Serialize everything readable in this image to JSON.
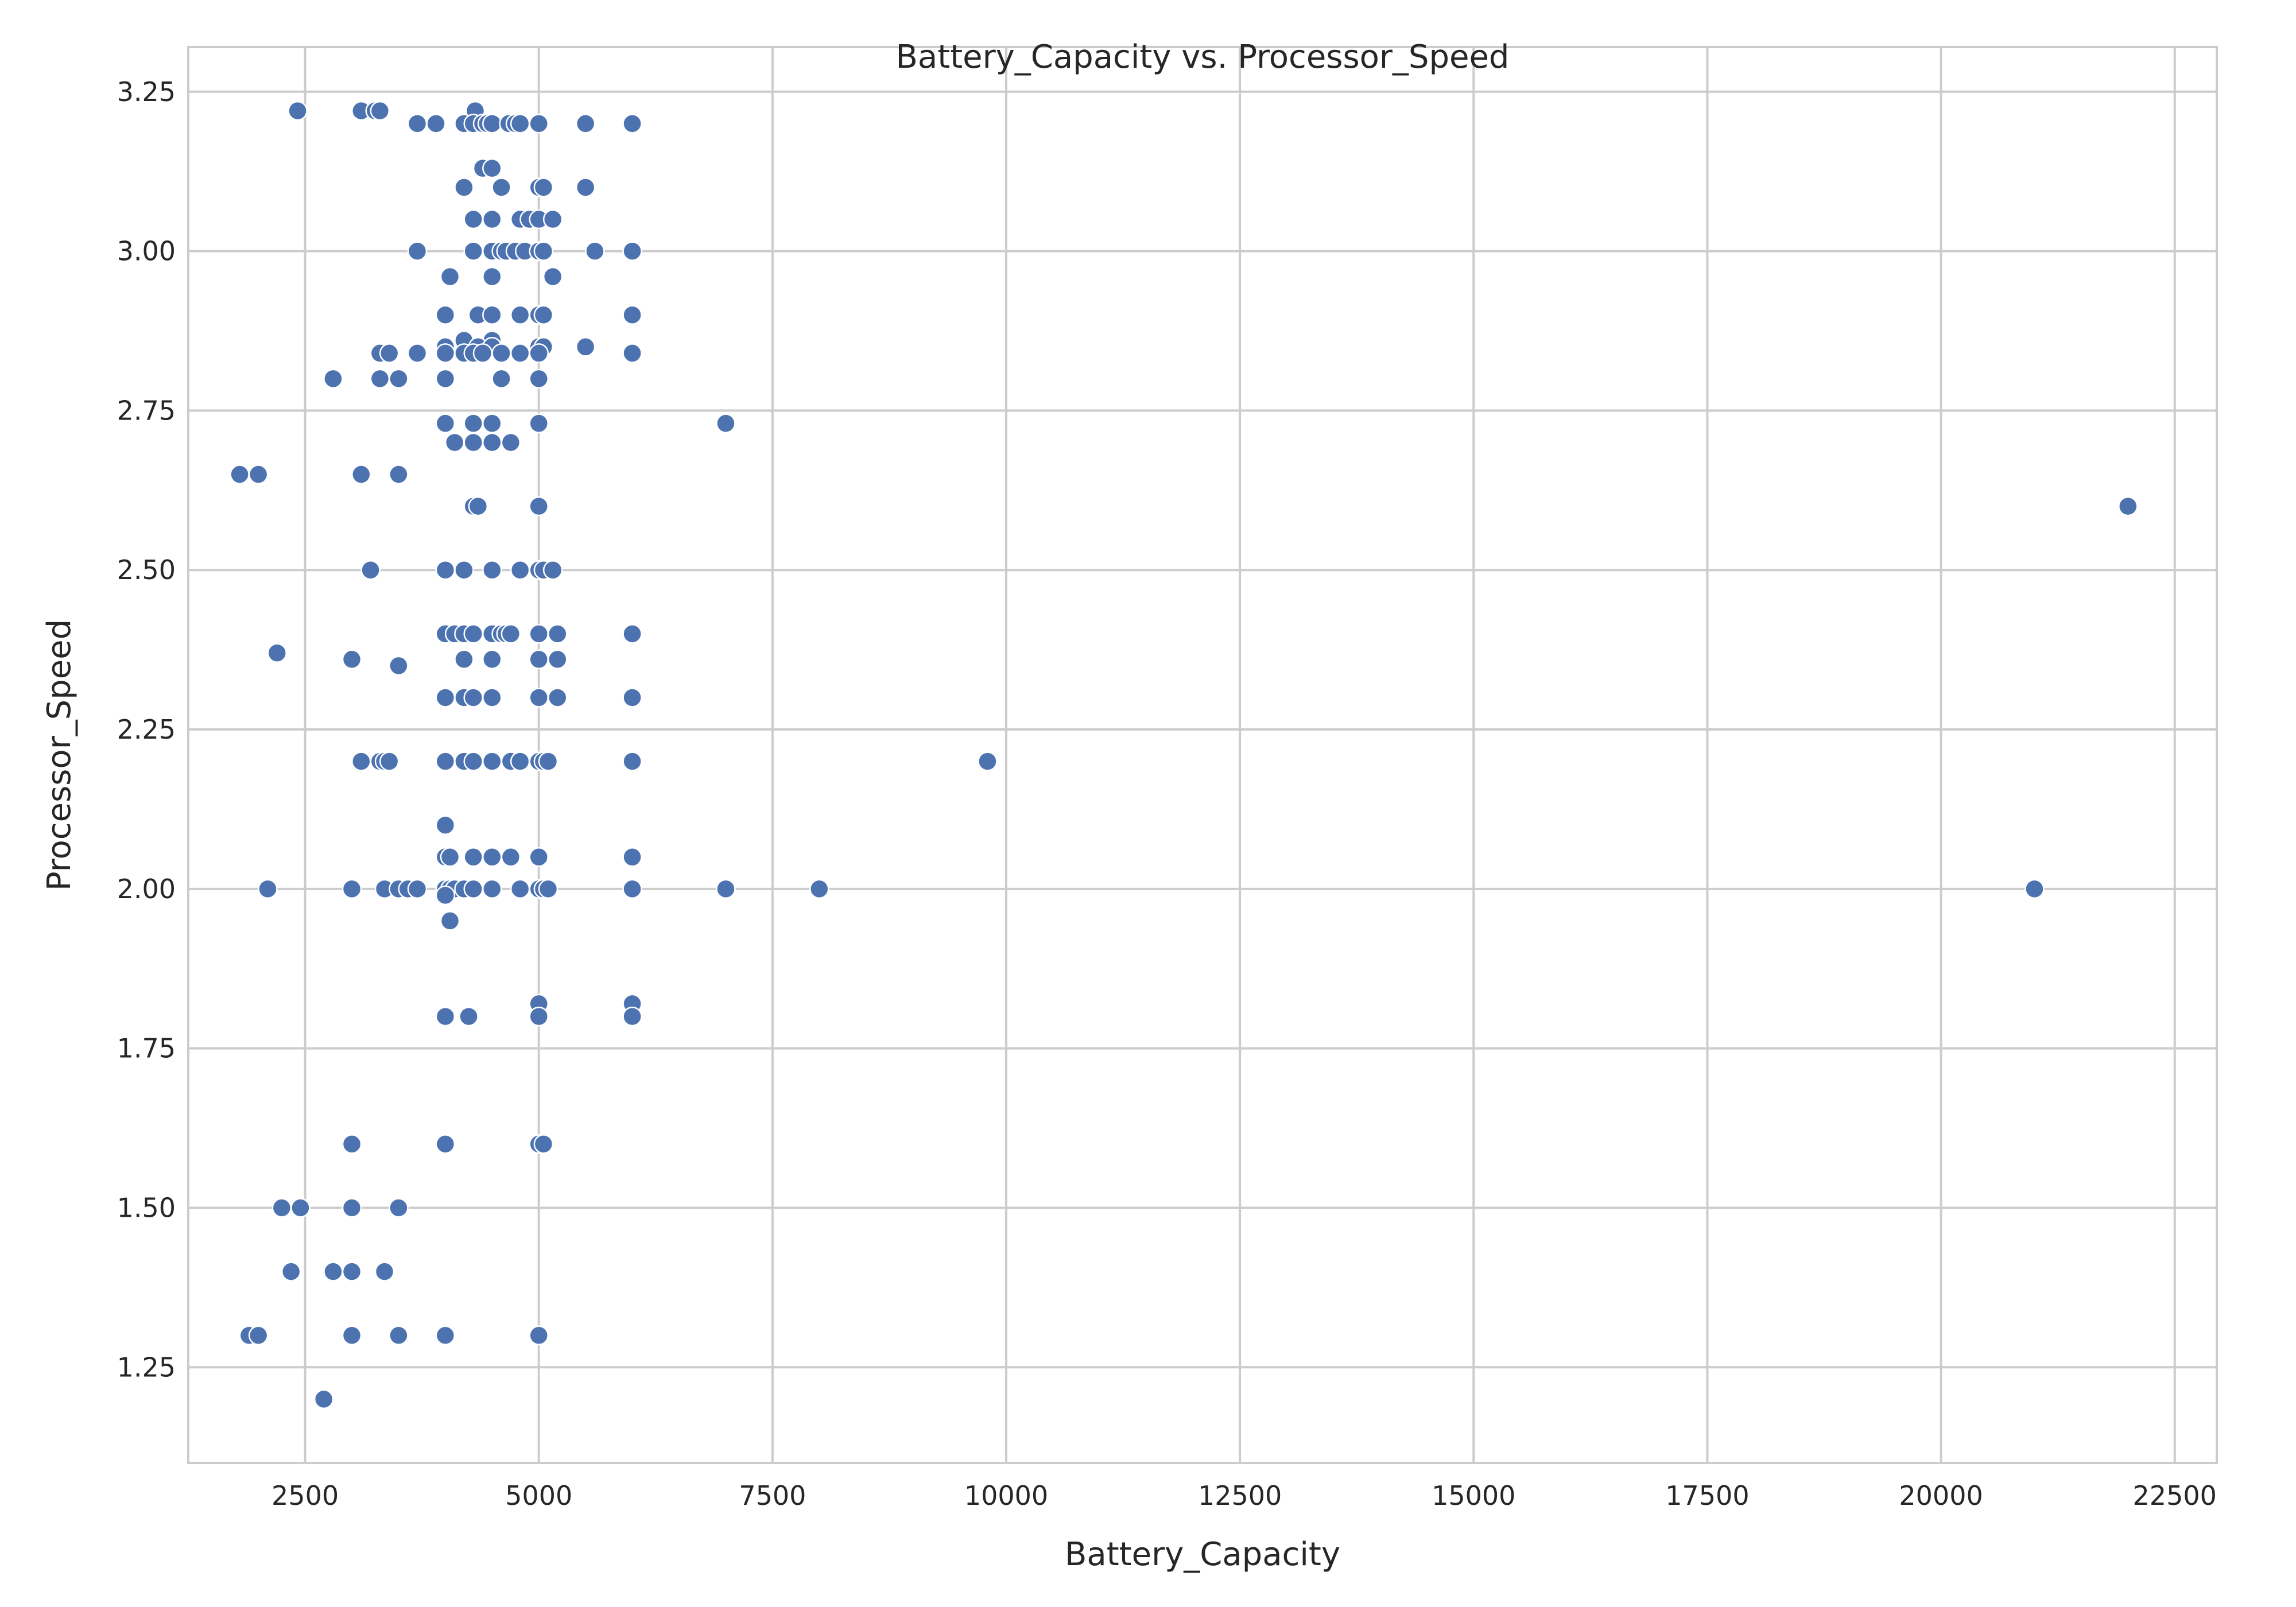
{
  "chart_data": {
    "type": "scatter",
    "title": "Battery_Capacity vs. Processor_Speed",
    "xlabel": "Battery_Capacity",
    "ylabel": "Processor_Speed",
    "xlim": [
      1250,
      22950
    ],
    "ylim": [
      1.1,
      3.32
    ],
    "xticks": [
      2500,
      5000,
      7500,
      10000,
      12500,
      15000,
      17500,
      20000,
      22500
    ],
    "xtick_labels": [
      "2500",
      "5000",
      "7500",
      "10000",
      "12500",
      "15000",
      "17500",
      "20000",
      "22500"
    ],
    "yticks": [
      1.25,
      1.5,
      1.75,
      2.0,
      2.25,
      2.5,
      2.75,
      3.0,
      3.25
    ],
    "ytick_labels": [
      "1.25",
      "1.50",
      "1.75",
      "2.00",
      "2.25",
      "2.50",
      "2.75",
      "3.00",
      "3.25"
    ],
    "grid": true,
    "marker_color": "#4c72b0",
    "points": [
      [
        2420,
        3.22
      ],
      [
        3100,
        3.22
      ],
      [
        3250,
        3.22
      ],
      [
        3300,
        3.22
      ],
      [
        4320,
        3.22
      ],
      [
        3700,
        3.2
      ],
      [
        3900,
        3.2
      ],
      [
        4200,
        3.2
      ],
      [
        4300,
        3.2
      ],
      [
        4400,
        3.2
      ],
      [
        4450,
        3.2
      ],
      [
        4500,
        3.2
      ],
      [
        4680,
        3.2
      ],
      [
        4750,
        3.2
      ],
      [
        4800,
        3.2
      ],
      [
        5000,
        3.2
      ],
      [
        5500,
        3.2
      ],
      [
        6000,
        3.2
      ],
      [
        4400,
        3.13
      ],
      [
        4500,
        3.13
      ],
      [
        4200,
        3.1
      ],
      [
        4600,
        3.1
      ],
      [
        5000,
        3.1
      ],
      [
        5050,
        3.1
      ],
      [
        5500,
        3.1
      ],
      [
        4300,
        3.05
      ],
      [
        4500,
        3.05
      ],
      [
        4800,
        3.05
      ],
      [
        4900,
        3.05
      ],
      [
        5000,
        3.05
      ],
      [
        5150,
        3.05
      ],
      [
        3700,
        3.0
      ],
      [
        4300,
        3.0
      ],
      [
        4500,
        3.0
      ],
      [
        4600,
        3.0
      ],
      [
        4650,
        3.0
      ],
      [
        4750,
        3.0
      ],
      [
        4850,
        3.0
      ],
      [
        5000,
        3.0
      ],
      [
        5050,
        3.0
      ],
      [
        5600,
        3.0
      ],
      [
        6000,
        3.0
      ],
      [
        4050,
        2.96
      ],
      [
        4500,
        2.96
      ],
      [
        5150,
        2.96
      ],
      [
        4000,
        2.9
      ],
      [
        4350,
        2.9
      ],
      [
        4500,
        2.9
      ],
      [
        4800,
        2.9
      ],
      [
        5000,
        2.9
      ],
      [
        5050,
        2.9
      ],
      [
        6000,
        2.9
      ],
      [
        4200,
        2.86
      ],
      [
        4500,
        2.86
      ],
      [
        4000,
        2.85
      ],
      [
        4350,
        2.85
      ],
      [
        4500,
        2.85
      ],
      [
        5000,
        2.85
      ],
      [
        5050,
        2.85
      ],
      [
        5500,
        2.85
      ],
      [
        3300,
        2.84
      ],
      [
        3400,
        2.84
      ],
      [
        3700,
        2.84
      ],
      [
        4000,
        2.84
      ],
      [
        4200,
        2.84
      ],
      [
        4300,
        2.84
      ],
      [
        4400,
        2.84
      ],
      [
        4600,
        2.84
      ],
      [
        4800,
        2.84
      ],
      [
        5000,
        2.84
      ],
      [
        6000,
        2.84
      ],
      [
        2800,
        2.8
      ],
      [
        3300,
        2.8
      ],
      [
        3500,
        2.8
      ],
      [
        4000,
        2.8
      ],
      [
        4600,
        2.8
      ],
      [
        5000,
        2.8
      ],
      [
        4000,
        2.73
      ],
      [
        4300,
        2.73
      ],
      [
        4500,
        2.73
      ],
      [
        5000,
        2.73
      ],
      [
        7000,
        2.73
      ],
      [
        4100,
        2.7
      ],
      [
        4300,
        2.7
      ],
      [
        4500,
        2.7
      ],
      [
        4700,
        2.7
      ],
      [
        1800,
        2.65
      ],
      [
        2000,
        2.65
      ],
      [
        3100,
        2.65
      ],
      [
        3500,
        2.65
      ],
      [
        4300,
        2.6
      ],
      [
        4350,
        2.6
      ],
      [
        5000,
        2.6
      ],
      [
        22000,
        2.6
      ],
      [
        3200,
        2.5
      ],
      [
        4000,
        2.5
      ],
      [
        4200,
        2.5
      ],
      [
        4500,
        2.5
      ],
      [
        4800,
        2.5
      ],
      [
        5000,
        2.5
      ],
      [
        5050,
        2.5
      ],
      [
        5150,
        2.5
      ],
      [
        4000,
        2.4
      ],
      [
        4100,
        2.4
      ],
      [
        4200,
        2.4
      ],
      [
        4300,
        2.4
      ],
      [
        4500,
        2.4
      ],
      [
        4600,
        2.4
      ],
      [
        4650,
        2.4
      ],
      [
        4700,
        2.4
      ],
      [
        5000,
        2.4
      ],
      [
        5200,
        2.4
      ],
      [
        6000,
        2.4
      ],
      [
        2200,
        2.37
      ],
      [
        3000,
        2.36
      ],
      [
        4200,
        2.36
      ],
      [
        4500,
        2.36
      ],
      [
        5000,
        2.36
      ],
      [
        5200,
        2.36
      ],
      [
        3500,
        2.35
      ],
      [
        4000,
        2.3
      ],
      [
        4200,
        2.3
      ],
      [
        4300,
        2.3
      ],
      [
        4500,
        2.3
      ],
      [
        5000,
        2.3
      ],
      [
        5200,
        2.3
      ],
      [
        6000,
        2.3
      ],
      [
        3100,
        2.2
      ],
      [
        3300,
        2.2
      ],
      [
        3350,
        2.2
      ],
      [
        3400,
        2.2
      ],
      [
        4000,
        2.2
      ],
      [
        4200,
        2.2
      ],
      [
        4300,
        2.2
      ],
      [
        4500,
        2.2
      ],
      [
        4700,
        2.2
      ],
      [
        4800,
        2.2
      ],
      [
        5000,
        2.2
      ],
      [
        5050,
        2.2
      ],
      [
        5100,
        2.2
      ],
      [
        6000,
        2.2
      ],
      [
        9800,
        2.2
      ],
      [
        4000,
        2.1
      ],
      [
        4000,
        2.05
      ],
      [
        4050,
        2.05
      ],
      [
        4300,
        2.05
      ],
      [
        4500,
        2.05
      ],
      [
        4700,
        2.05
      ],
      [
        5000,
        2.05
      ],
      [
        6000,
        2.05
      ],
      [
        2100,
        2.0
      ],
      [
        3000,
        2.0
      ],
      [
        3350,
        2.0
      ],
      [
        3500,
        2.0
      ],
      [
        3600,
        2.0
      ],
      [
        3700,
        2.0
      ],
      [
        4000,
        2.0
      ],
      [
        4050,
        2.0
      ],
      [
        4100,
        2.0
      ],
      [
        4200,
        2.0
      ],
      [
        4300,
        2.0
      ],
      [
        4500,
        2.0
      ],
      [
        4800,
        2.0
      ],
      [
        5000,
        2.0
      ],
      [
        5050,
        2.0
      ],
      [
        5100,
        2.0
      ],
      [
        6000,
        2.0
      ],
      [
        7000,
        2.0
      ],
      [
        8000,
        2.0
      ],
      [
        21000,
        2.0
      ],
      [
        4000,
        1.99
      ],
      [
        4050,
        1.95
      ],
      [
        5000,
        1.82
      ],
      [
        6000,
        1.82
      ],
      [
        4000,
        1.8
      ],
      [
        4250,
        1.8
      ],
      [
        5000,
        1.8
      ],
      [
        6000,
        1.8
      ],
      [
        3000,
        1.6
      ],
      [
        4000,
        1.6
      ],
      [
        5000,
        1.6
      ],
      [
        5050,
        1.6
      ],
      [
        2250,
        1.5
      ],
      [
        2450,
        1.5
      ],
      [
        3000,
        1.5
      ],
      [
        3500,
        1.5
      ],
      [
        2350,
        1.4
      ],
      [
        2800,
        1.4
      ],
      [
        3000,
        1.4
      ],
      [
        3350,
        1.4
      ],
      [
        1900,
        1.3
      ],
      [
        2000,
        1.3
      ],
      [
        3000,
        1.3
      ],
      [
        3500,
        1.3
      ],
      [
        4000,
        1.3
      ],
      [
        5000,
        1.3
      ],
      [
        2700,
        1.2
      ]
    ]
  }
}
